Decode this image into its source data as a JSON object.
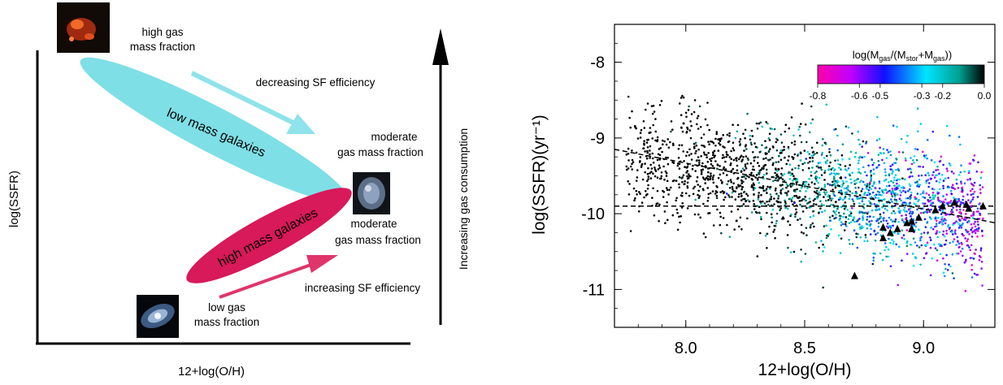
{
  "schematic": {
    "x_axis_label": "12+log(O/H)",
    "y_axis_label": "log(SSFR)",
    "high_gas_line1": "high gas",
    "high_gas_line2": "mass fraction",
    "decreasing_sf": "decreasing SF efficiency",
    "low_mass": "low mass galaxies",
    "moderate_top_line1": "moderate",
    "moderate_top_line2": "gas mass  fraction",
    "high_mass": "high mass galaxies",
    "moderate_bottom_line1": "moderate",
    "moderate_bottom_line2": "gas mass fraction",
    "increasing_sf": "increasing SF efficiency",
    "low_gas_line1": "low  gas",
    "low_gas_line2": "mass fraction",
    "gas_consumption": "Increasing gas consumption",
    "colors": {
      "low_mass": "#7fdfe6",
      "high_mass": "#d8195a",
      "arrow_cyan": "#8fe3ea",
      "arrow_red": "#e0356a"
    }
  },
  "chart_data": {
    "type": "scatter",
    "xlabel": "12+log(O/H)",
    "ylabel": "log(SSFR)(yr⁻¹)",
    "xlim": [
      7.7,
      9.3
    ],
    "ylim": [
      -11.5,
      -7.5
    ],
    "x_ticks": [
      "8.0",
      "8.5",
      "9.0"
    ],
    "y_ticks": [
      "-8",
      "-9",
      "-10",
      "-11"
    ],
    "colorbar": {
      "label": "log(M_gas/(M_star+M_gas))",
      "ticks": [
        "-0.8",
        "-0.6",
        "-0.5",
        "-0.3",
        "-0.2",
        "0.0"
      ],
      "range": [
        -0.8,
        0.0
      ],
      "colors": [
        "#ff00aa",
        "#c000ff",
        "#1010ff",
        "#00e5ff",
        "#00b0a0",
        "#000000"
      ]
    },
    "fit_lines": [
      {
        "style": "dashed",
        "x": [
          7.7,
          9.3
        ],
        "y": [
          -9.15,
          -10.12
        ]
      },
      {
        "style": "dashed",
        "x": [
          7.7,
          9.3
        ],
        "y": [
          -9.9,
          -9.9
        ]
      }
    ],
    "triangles": {
      "x": [
        8.71,
        8.83,
        8.83,
        8.86,
        8.89,
        8.93,
        8.95,
        8.95,
        8.98,
        9.05,
        9.08,
        9.13,
        9.18,
        9.19,
        9.25
      ],
      "y": [
        -10.82,
        -10.18,
        -10.32,
        -10.25,
        -10.2,
        -10.12,
        -10.1,
        -10.2,
        -10.05,
        -9.95,
        -9.9,
        -9.85,
        -9.88,
        -9.93,
        -9.9
      ]
    },
    "point_cloud_summary": {
      "n_points": 2200,
      "x_center": 8.55,
      "y_center": -9.8
    }
  }
}
